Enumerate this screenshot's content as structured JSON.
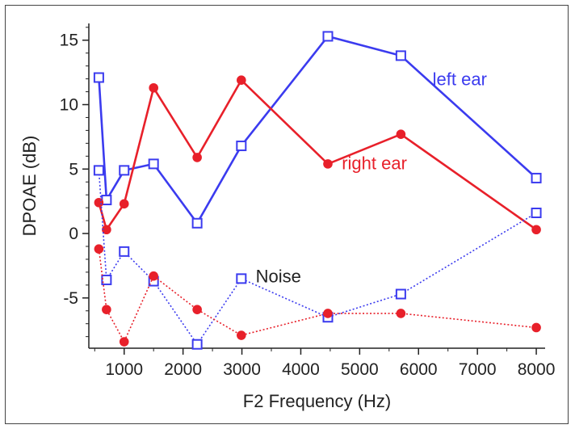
{
  "chart_data": {
    "type": "line",
    "xlabel": "F2 Frequency (Hz)",
    "ylabel": "DPOAE (dB)",
    "xlim": [
      400,
      8150
    ],
    "ylim": [
      -8.9,
      16.3
    ],
    "xticks": [
      1000,
      2000,
      3000,
      4000,
      5000,
      6000,
      7000,
      8000
    ],
    "yticks": [
      -5,
      0,
      5,
      10,
      15
    ],
    "grid": false,
    "series": [
      {
        "name": "left ear",
        "color": "#3b3bef",
        "style": "solid",
        "marker": "open-square",
        "x": [
          570,
          700,
          1000,
          1500,
          2240,
          2990,
          4460,
          5700,
          8000
        ],
        "y": [
          12.1,
          2.6,
          4.9,
          5.4,
          0.8,
          6.8,
          15.3,
          13.8,
          4.3
        ]
      },
      {
        "name": "right ear",
        "color": "#e8202a",
        "style": "solid",
        "marker": "filled-circle",
        "x": [
          570,
          700,
          1000,
          1500,
          2240,
          2990,
          4460,
          5700,
          8000
        ],
        "y": [
          2.4,
          0.3,
          2.3,
          11.3,
          5.9,
          11.9,
          5.4,
          7.7,
          0.3
        ]
      },
      {
        "name": "",
        "color": "#3b3bef",
        "style": "dotted",
        "marker": "open-square",
        "x": [
          570,
          700,
          1000,
          1500,
          2240,
          2990,
          4460,
          5700,
          8000
        ],
        "y": [
          4.9,
          -3.6,
          -1.4,
          -3.7,
          -8.6,
          -3.5,
          -6.5,
          -4.7,
          1.6
        ]
      },
      {
        "name": "",
        "color": "#e8202a",
        "style": "dotted",
        "marker": "filled-circle",
        "x": [
          570,
          700,
          1000,
          1500,
          2240,
          2990,
          4460,
          5700,
          8000
        ],
        "y": [
          -1.2,
          -5.9,
          -8.4,
          -3.3,
          -5.9,
          -7.9,
          -6.2,
          -6.2,
          -7.3
        ]
      }
    ],
    "annotations": [
      {
        "text": "left ear",
        "color": "#3b3bef",
        "x": 6700,
        "y": 11.5
      },
      {
        "text": "right ear",
        "color": "#e8202a",
        "x": 5250,
        "y": 5.0
      },
      {
        "text": "Noise",
        "color": "#222222",
        "x": 3620,
        "y": -3.8
      }
    ]
  }
}
